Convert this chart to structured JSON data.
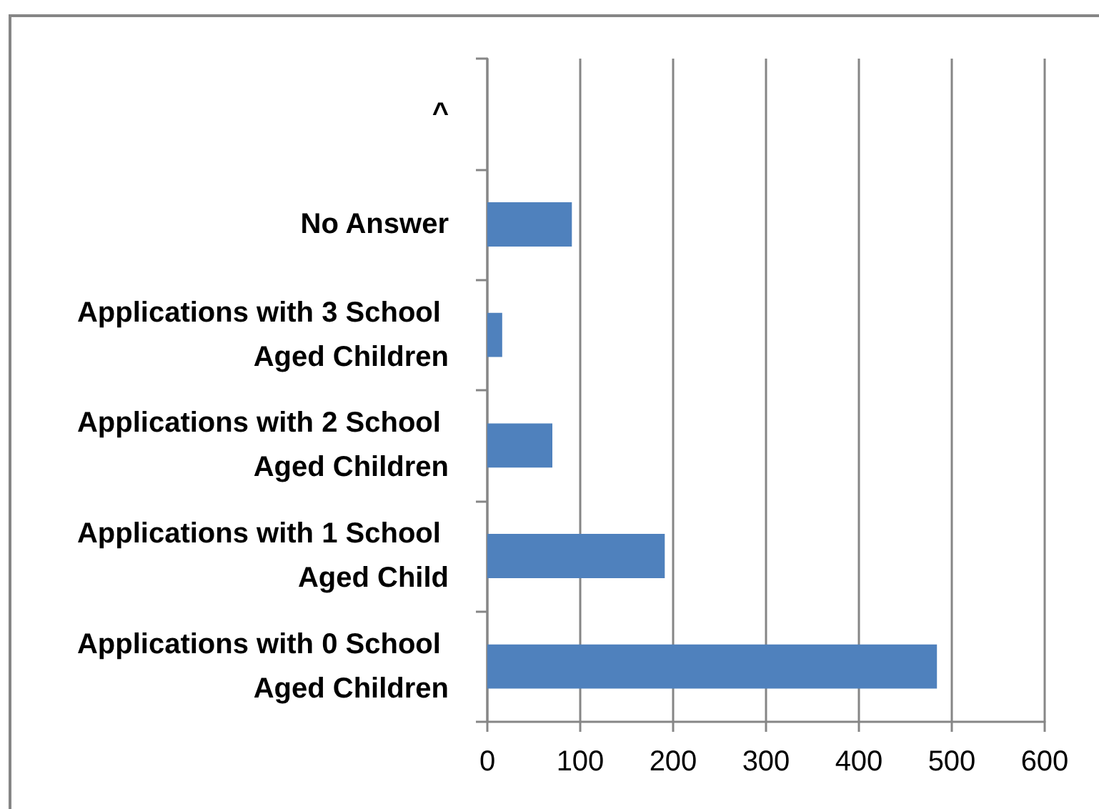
{
  "chart_data": {
    "type": "bar",
    "orientation": "horizontal",
    "categories": [
      "^",
      "No Answer",
      "Applications with 3 School Aged Children",
      "Applications with 2 School Aged Children",
      "Applications with 1 School Aged Child",
      "Applications with 0 School Aged Children"
    ],
    "values": [
      null,
      91,
      16,
      70,
      191,
      484
    ],
    "color": "#4f81bd",
    "xlim": [
      0,
      600
    ],
    "xticks": [
      0,
      100,
      200,
      300,
      400,
      500,
      600
    ],
    "grid": "x"
  }
}
